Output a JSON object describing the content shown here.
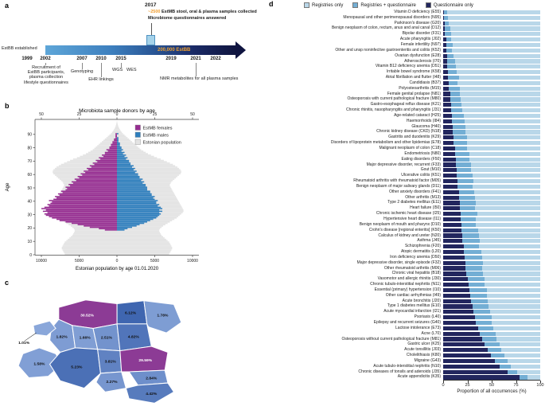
{
  "panel_labels": {
    "a": "a",
    "b": "b",
    "c": "c",
    "d": "d"
  },
  "timeline": {
    "years": [
      "1999",
      "2002",
      "2007",
      "2010",
      "2015",
      "2019",
      "2021",
      "2022"
    ],
    "milestone_year": "2017",
    "callout": {
      "highlight": "~2500",
      "line1_rest": " EstMB stool, oral & plasma samples collected",
      "line2": "Microbiome questionnaires answered"
    },
    "bar_label": "200,000 EstBB",
    "events": {
      "estbb_established": "EstBB established",
      "recruitment_lines": [
        "Recruitment of",
        "EstBB participants,",
        "plasma collection",
        "lifestyle questionnaires"
      ],
      "genotyping": "Genotyping",
      "ehr": "EHR linkings",
      "wgs": "WGS",
      "wes": "WES",
      "nmr": "NMR metabolites for all plasma samples"
    },
    "colors": {
      "orange": "#f0a030",
      "bar_start": "#5ea6d8",
      "bar_end": "#10153f",
      "milestone_box": "#a6d3ea"
    }
  },
  "chart_data": [
    {
      "id": "age_pyramid",
      "type": "bar",
      "title": "Microbiota sample donors by age",
      "ylabel": "Age",
      "xlabel_bottom": "Estonian population by age 01.01.2020",
      "top_ticks": [
        "50",
        "25",
        "0",
        "25",
        "50"
      ],
      "bottom_ticks": [
        "10000",
        "5000",
        "0",
        "5000",
        "10000"
      ],
      "age_ticks": [
        0,
        10,
        20,
        30,
        40,
        50,
        60,
        70,
        80,
        90
      ],
      "legend": [
        {
          "label": "EstMB females",
          "color": "#962d91"
        },
        {
          "label": "EstMB males",
          "color": "#2e7ebd"
        },
        {
          "label": "Estonian population",
          "color": "#e4e4e4"
        }
      ],
      "age_start": 18,
      "female": [
        8,
        12,
        18,
        22,
        26,
        30,
        34,
        38,
        40,
        43,
        45,
        47,
        48,
        46,
        49,
        47,
        50,
        48,
        45,
        46,
        44,
        43,
        45,
        42,
        40,
        41,
        38,
        39,
        36,
        37,
        34,
        33,
        34,
        31,
        32,
        29,
        30,
        27,
        28,
        25,
        26,
        23,
        24,
        21,
        22,
        19,
        20,
        17,
        18,
        15,
        16,
        13,
        14,
        11,
        12,
        9,
        10,
        8,
        8,
        6,
        7,
        5,
        5,
        4,
        4,
        3,
        3,
        2,
        2,
        1,
        1,
        1,
        1
      ],
      "male": [
        5,
        7,
        10,
        13,
        15,
        18,
        20,
        22,
        24,
        26,
        27,
        28,
        29,
        28,
        30,
        28,
        30,
        29,
        27,
        28,
        26,
        26,
        27,
        25,
        24,
        25,
        23,
        23,
        22,
        22,
        20,
        20,
        20,
        19,
        19,
        17,
        18,
        16,
        17,
        15,
        15,
        14,
        14,
        12,
        13,
        11,
        12,
        10,
        11,
        9,
        9,
        8,
        8,
        6,
        7,
        5,
        6,
        4,
        5,
        3,
        4,
        3,
        3,
        2,
        2,
        2,
        1,
        1,
        1,
        1,
        0,
        0,
        1
      ],
      "population_age_start": 0,
      "population_per_sex": [
        6900,
        7000,
        7100,
        7200,
        7300,
        7300,
        7200,
        7100,
        7000,
        6900,
        6700,
        6500,
        6300,
        6100,
        5900,
        5800,
        5700,
        5600,
        5600,
        5700,
        5900,
        6100,
        6400,
        6700,
        7000,
        7300,
        7600,
        7900,
        8100,
        8300,
        8500,
        8700,
        8800,
        8800,
        8700,
        8600,
        8500,
        8400,
        8300,
        8200,
        8100,
        8000,
        7900,
        7800,
        7700,
        7600,
        7500,
        7400,
        7300,
        7200,
        7100,
        7000,
        7000,
        7100,
        7200,
        7400,
        7600,
        7800,
        8000,
        8200,
        8400,
        8500,
        8500,
        8400,
        8200,
        8000,
        7700,
        7400,
        7000,
        6600,
        6200,
        5800,
        5300,
        4900,
        4500,
        4100,
        3800,
        3500,
        3200,
        3000,
        2800,
        2600,
        2400,
        2200,
        2000,
        1800,
        1600,
        1400,
        1200,
        1000,
        800,
        650,
        500,
        400,
        300,
        220,
        150,
        100,
        60,
        30,
        10
      ]
    },
    {
      "id": "county_map",
      "type": "choropleth",
      "unit": "%",
      "palette": {
        "high": "#8c3b95",
        "low": "#8aa7da",
        "mid": "#3f66b0"
      },
      "counties": [
        {
          "name": "Harju",
          "label": "30.52%",
          "value": 30.52
        },
        {
          "name": "Lääne-Viru",
          "label": "6.12%",
          "value": 6.12
        },
        {
          "name": "Ida-Viru",
          "label": "1.78%",
          "value": 1.78
        },
        {
          "name": "Lääne",
          "label": "1.82%",
          "value": 1.82
        },
        {
          "name": "Rapla",
          "label": "1.66%",
          "value": 1.66
        },
        {
          "name": "Järva",
          "label": "2.51%",
          "value": 2.51
        },
        {
          "name": "Hiiu",
          "label": "1.01%",
          "value": 1.01
        },
        {
          "name": "Saare",
          "label": "1.58%",
          "value": 1.58
        },
        {
          "name": "Pärnu",
          "label": "5.23%",
          "value": 5.23
        },
        {
          "name": "Viljandi",
          "label": "3.81%",
          "value": 3.81
        },
        {
          "name": "Jõgeva",
          "label": "4.82%",
          "value": 4.82
        },
        {
          "name": "Tartu",
          "label": "29.59%",
          "value": 29.59
        },
        {
          "name": "Valga",
          "label": "2.27%",
          "value": 2.27
        },
        {
          "name": "Põlva",
          "label": "2.84%",
          "value": 2.84
        },
        {
          "name": "Võru",
          "label": "4.42%",
          "value": 4.42
        }
      ]
    },
    {
      "id": "occurrences",
      "type": "bar",
      "stacked": true,
      "orientation": "horizontal",
      "xlabel": "Proportion of all occurrences (%)",
      "xticks": [
        0,
        25,
        50,
        75,
        100
      ],
      "xlim": [
        0,
        100
      ],
      "legend": [
        {
          "label": "Registries only",
          "color": "#b9d7e9"
        },
        {
          "label": "Registries + questionnaire",
          "color": "#73aed4"
        },
        {
          "label": "Questionnaire only",
          "color": "#22265e"
        }
      ],
      "series_keys": [
        "Questionnaire only",
        "Registries + questionnaire",
        "Registries only"
      ],
      "rows": [
        {
          "label": "Vitamin D deficiency (E55)",
          "values": [
            1,
            3,
            96
          ]
        },
        {
          "label": "Menopausal and other perimenopausal disorders (N95)",
          "values": [
            1,
            4,
            95
          ]
        },
        {
          "label": "Parkinson's disease (G20)",
          "values": [
            2,
            4,
            94
          ]
        },
        {
          "label": "Benign neoplasm of colon, rectum, anus and anal canal (D12)",
          "values": [
            2,
            5,
            93
          ]
        },
        {
          "label": "Bipolar disorder (F31)",
          "values": [
            2,
            6,
            92
          ]
        },
        {
          "label": "Acute pharyngitis (J02)",
          "values": [
            3,
            5,
            92
          ]
        },
        {
          "label": "Female infertility (N97)",
          "values": [
            3,
            7,
            90
          ]
        },
        {
          "label": "Other and unsp noninfective gastroenteritis and colitis (K52)",
          "values": [
            3,
            6,
            91
          ]
        },
        {
          "label": "Ovarian dysfunction (E28)",
          "values": [
            4,
            7,
            89
          ]
        },
        {
          "label": "Atherosclerosis (I70)",
          "values": [
            4,
            8,
            88
          ]
        },
        {
          "label": "Vitamin B12 deficiency anemia (D51)",
          "values": [
            4,
            9,
            87
          ]
        },
        {
          "label": "Irritable bowel syndrome (K58)",
          "values": [
            5,
            9,
            86
          ]
        },
        {
          "label": "Atrial fibrillation and flutter (I48)",
          "values": [
            5,
            11,
            84
          ]
        },
        {
          "label": "Candidiasis (B37)",
          "values": [
            6,
            9,
            85
          ]
        },
        {
          "label": "Polyosteoarthritis (M15)",
          "values": [
            6,
            11,
            83
          ]
        },
        {
          "label": "Female genital prolapse (N81)",
          "values": [
            7,
            10,
            83
          ]
        },
        {
          "label": "Osteoporosis with current pathological fracture (M80)",
          "values": [
            7,
            11,
            82
          ]
        },
        {
          "label": "Gastro-esophageal reflux disease (K21)",
          "values": [
            8,
            11,
            81
          ]
        },
        {
          "label": "Chronic rhinitis, nasopharyngitis and pharyngitis (J31)",
          "values": [
            8,
            12,
            80
          ]
        },
        {
          "label": "Age-related cataract (H25)",
          "values": [
            9,
            12,
            79
          ]
        },
        {
          "label": "Haemorrhoids (I84)",
          "values": [
            9,
            13,
            78
          ]
        },
        {
          "label": "Glaucoma (H40)",
          "values": [
            10,
            13,
            77
          ]
        },
        {
          "label": "Chronic kidney disease (CKD) (N18)",
          "values": [
            10,
            13,
            77
          ]
        },
        {
          "label": "Gastritis and duodenitis (K29)",
          "values": [
            11,
            14,
            75
          ]
        },
        {
          "label": "Disorders of lipoprotein metabolism and other lipidemias (E78)",
          "values": [
            11,
            14,
            75
          ]
        },
        {
          "label": "Malignant neoplasm of colon (C18)",
          "values": [
            12,
            13,
            75
          ]
        },
        {
          "label": "Endometriosis (N80)",
          "values": [
            12,
            15,
            73
          ]
        },
        {
          "label": "Eating disorders (F50)",
          "values": [
            13,
            14,
            73
          ]
        },
        {
          "label": "Major depressive disorder, recurrent (F33)",
          "values": [
            13,
            16,
            71
          ]
        },
        {
          "label": "Gout (M10)",
          "values": [
            14,
            15,
            71
          ]
        },
        {
          "label": "Ulcerative colitis (K51)",
          "values": [
            14,
            16,
            70
          ]
        },
        {
          "label": "Rheumatoid arthritis with rheumatoid factor (M05)",
          "values": [
            15,
            16,
            69
          ]
        },
        {
          "label": "Benign neoplasm of major salivary glands (D11)",
          "values": [
            15,
            15,
            70
          ]
        },
        {
          "label": "Other anxiety disorders (F41)",
          "values": [
            16,
            16,
            68
          ]
        },
        {
          "label": "Other arthritis (M13)",
          "values": [
            16,
            17,
            67
          ]
        },
        {
          "label": "Type 2 diabetes mellitus (E11)",
          "values": [
            17,
            17,
            66
          ]
        },
        {
          "label": "Heart failure (I50)",
          "values": [
            17,
            16,
            67
          ]
        },
        {
          "label": "Chronic ischemic heart disease (I25)",
          "values": [
            18,
            17,
            65
          ]
        },
        {
          "label": "Hypertensive heart disease (I11)",
          "values": [
            18,
            16,
            66
          ]
        },
        {
          "label": "Benign neoplasm of mouth and pharynx (D10)",
          "values": [
            19,
            15,
            66
          ]
        },
        {
          "label": "Crohn's disease [regional enteritis] (K50)",
          "values": [
            19,
            17,
            64
          ]
        },
        {
          "label": "Calculus of kidney and ureter (N20)",
          "values": [
            20,
            17,
            63
          ]
        },
        {
          "label": "Asthma (J45)",
          "values": [
            20,
            18,
            62
          ]
        },
        {
          "label": "Schizophrenia (F20)",
          "values": [
            21,
            16,
            63
          ]
        },
        {
          "label": "Atopic dermatitis (L20)",
          "values": [
            21,
            18,
            61
          ]
        },
        {
          "label": "Iron deficiency anemia (D50)",
          "values": [
            22,
            18,
            60
          ]
        },
        {
          "label": "Major depressive disorder, single episode (F32)",
          "values": [
            23,
            18,
            59
          ]
        },
        {
          "label": "Other rheumatoid arthritis (M06)",
          "values": [
            23,
            17,
            60
          ]
        },
        {
          "label": "Chronic viral hepatitis (B18)",
          "values": [
            24,
            17,
            59
          ]
        },
        {
          "label": "Vasomotor and allergic rhinitis (J30)",
          "values": [
            25,
            18,
            57
          ]
        },
        {
          "label": "Chronic tubulo-interstitial nephritis (N11)",
          "values": [
            26,
            17,
            57
          ]
        },
        {
          "label": "Essential (primary) hypertension (I10)",
          "values": [
            27,
            18,
            55
          ]
        },
        {
          "label": "Other cardiac arrhythmias (I49)",
          "values": [
            28,
            17,
            55
          ]
        },
        {
          "label": "Acute bronchitis (J20)",
          "values": [
            29,
            17,
            54
          ]
        },
        {
          "label": "Type 1 diabetes mellitus (E10)",
          "values": [
            30,
            17,
            53
          ]
        },
        {
          "label": "Acute myocardial infarction (I21)",
          "values": [
            31,
            17,
            52
          ]
        },
        {
          "label": "Psoriasis (L40)",
          "values": [
            33,
            17,
            50
          ]
        },
        {
          "label": "Epilepsy and recurrent seizures (G40)",
          "values": [
            34,
            16,
            50
          ]
        },
        {
          "label": "Lactose intolerance (E73)",
          "values": [
            36,
            16,
            48
          ]
        },
        {
          "label": "Acne (L70)",
          "values": [
            38,
            16,
            46
          ]
        },
        {
          "label": "Osteoporosis without current pathological fracture (M81)",
          "values": [
            40,
            15,
            45
          ]
        },
        {
          "label": "Gastric ulcer (K25)",
          "values": [
            43,
            15,
            42
          ]
        },
        {
          "label": "Acute tonsillitis (J03)",
          "values": [
            46,
            14,
            40
          ]
        },
        {
          "label": "Cholelithiasis (K80)",
          "values": [
            49,
            14,
            37
          ]
        },
        {
          "label": "Migraine (G43)",
          "values": [
            53,
            13,
            34
          ]
        },
        {
          "label": "Acute tubulo-interstitial nephritis (N10)",
          "values": [
            58,
            12,
            30
          ]
        },
        {
          "label": "Chronic diseases of tonsils and adenoids (J35)",
          "values": [
            66,
            10,
            24
          ]
        },
        {
          "label": "Acute appendicitis (K35)",
          "values": [
            79,
            8,
            13
          ]
        }
      ]
    }
  ]
}
